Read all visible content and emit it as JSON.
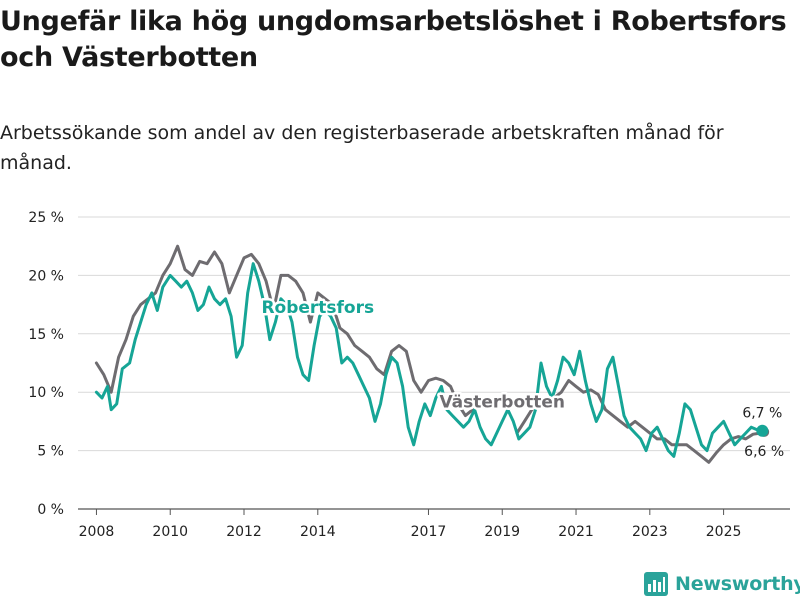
{
  "title": "Ungefär lika hög ungdomsarbetslöshet i Robertsfors och Västerbotten",
  "subtitle": "Arbetssökande som andel av den registerbaserade arbetskraften månad för månad.",
  "brand": {
    "name": "Newsworthy",
    "icon": "chart-logo-icon"
  },
  "colors": {
    "robertsfors": "#16a596",
    "vasterbotten": "#6e6c70",
    "grid": "#d9d9d9"
  },
  "chart_data": {
    "type": "line",
    "title": "Ungefär lika hög ungdomsarbetslöshet i Robertsfors och Västerbotten",
    "xlabel": "",
    "ylabel": "",
    "xlim": [
      2007.5,
      2026.8
    ],
    "ylim": [
      0,
      25
    ],
    "y_ticks": [
      0,
      5,
      10,
      15,
      20,
      25
    ],
    "y_tick_labels": [
      "0 %",
      "5 %",
      "10 %",
      "15 %",
      "20 %",
      "25 %"
    ],
    "x_ticks": [
      2008,
      2010,
      2012,
      2014,
      2017,
      2019,
      2021,
      2023,
      2025
    ],
    "x_tick_labels": [
      "2008",
      "2010",
      "2012",
      "2014",
      "2017",
      "2019",
      "2021",
      "2023",
      "2025"
    ],
    "grid": true,
    "series": [
      {
        "name": "Västerbotten",
        "end_label": "6,6 %",
        "points": [
          [
            2008.0,
            12.5
          ],
          [
            2008.2,
            11.5
          ],
          [
            2008.4,
            10.0
          ],
          [
            2008.6,
            13.0
          ],
          [
            2008.8,
            14.5
          ],
          [
            2009.0,
            16.5
          ],
          [
            2009.2,
            17.5
          ],
          [
            2009.4,
            18.0
          ],
          [
            2009.6,
            18.5
          ],
          [
            2009.8,
            20.0
          ],
          [
            2010.0,
            21.0
          ],
          [
            2010.2,
            22.5
          ],
          [
            2010.4,
            20.5
          ],
          [
            2010.6,
            20.0
          ],
          [
            2010.8,
            21.2
          ],
          [
            2011.0,
            21.0
          ],
          [
            2011.2,
            22.0
          ],
          [
            2011.4,
            21.0
          ],
          [
            2011.6,
            18.5
          ],
          [
            2011.8,
            20.0
          ],
          [
            2012.0,
            21.5
          ],
          [
            2012.2,
            21.8
          ],
          [
            2012.4,
            21.0
          ],
          [
            2012.6,
            19.5
          ],
          [
            2012.8,
            17.0
          ],
          [
            2013.0,
            20.0
          ],
          [
            2013.2,
            20.0
          ],
          [
            2013.4,
            19.5
          ],
          [
            2013.6,
            18.5
          ],
          [
            2013.8,
            16.0
          ],
          [
            2014.0,
            18.5
          ],
          [
            2014.2,
            18.0
          ],
          [
            2014.4,
            17.5
          ],
          [
            2014.6,
            15.5
          ],
          [
            2014.8,
            15.0
          ],
          [
            2015.0,
            14.0
          ],
          [
            2015.2,
            13.5
          ],
          [
            2015.4,
            13.0
          ],
          [
            2015.6,
            12.0
          ],
          [
            2015.8,
            11.5
          ],
          [
            2016.0,
            13.5
          ],
          [
            2016.2,
            14.0
          ],
          [
            2016.4,
            13.5
          ],
          [
            2016.6,
            11.0
          ],
          [
            2016.8,
            10.0
          ],
          [
            2017.0,
            11.0
          ],
          [
            2017.2,
            11.2
          ],
          [
            2017.4,
            11.0
          ],
          [
            2017.6,
            10.5
          ],
          [
            2017.8,
            9.0
          ],
          [
            2018.0,
            8.0
          ],
          [
            2018.2,
            8.5
          ],
          [
            2018.4,
            9.5
          ],
          [
            2018.6,
            9.5
          ]
        ],
        "points_tail": [
          [
            2019.4,
            6.5
          ],
          [
            2019.6,
            7.5
          ],
          [
            2019.8,
            8.5
          ],
          [
            2020.0,
            9.0
          ],
          [
            2020.2,
            9.5
          ],
          [
            2020.4,
            9.5
          ],
          [
            2020.6,
            10.0
          ],
          [
            2020.8,
            11.0
          ],
          [
            2021.0,
            10.5
          ],
          [
            2021.2,
            10.0
          ],
          [
            2021.4,
            10.2
          ],
          [
            2021.6,
            9.8
          ],
          [
            2021.8,
            8.5
          ],
          [
            2022.0,
            8.0
          ],
          [
            2022.2,
            7.5
          ],
          [
            2022.4,
            7.0
          ],
          [
            2022.6,
            7.5
          ],
          [
            2022.8,
            7.0
          ],
          [
            2023.0,
            6.5
          ],
          [
            2023.2,
            6.0
          ],
          [
            2023.4,
            6.0
          ],
          [
            2023.6,
            5.5
          ],
          [
            2023.8,
            5.5
          ],
          [
            2024.0,
            5.5
          ],
          [
            2024.2,
            5.0
          ],
          [
            2024.4,
            4.5
          ],
          [
            2024.6,
            4.0
          ],
          [
            2024.8,
            4.8
          ],
          [
            2025.0,
            5.5
          ],
          [
            2025.2,
            6.0
          ],
          [
            2025.4,
            6.2
          ],
          [
            2025.6,
            6.0
          ],
          [
            2025.8,
            6.4
          ],
          [
            2026.0,
            6.5
          ],
          [
            2026.1,
            6.6
          ]
        ]
      },
      {
        "name": "Robertsfors",
        "end_label": "6,7 %",
        "points": [
          [
            2008.0,
            10.0
          ],
          [
            2008.15,
            9.5
          ],
          [
            2008.3,
            10.5
          ],
          [
            2008.4,
            8.5
          ],
          [
            2008.55,
            9.0
          ],
          [
            2008.7,
            12.0
          ],
          [
            2008.9,
            12.5
          ],
          [
            2009.05,
            14.5
          ],
          [
            2009.2,
            16.0
          ],
          [
            2009.35,
            17.5
          ],
          [
            2009.5,
            18.5
          ],
          [
            2009.65,
            17.0
          ],
          [
            2009.8,
            19.0
          ],
          [
            2010.0,
            20.0
          ],
          [
            2010.15,
            19.5
          ],
          [
            2010.3,
            19.0
          ],
          [
            2010.45,
            19.5
          ],
          [
            2010.6,
            18.5
          ],
          [
            2010.75,
            17.0
          ],
          [
            2010.9,
            17.5
          ],
          [
            2011.05,
            19.0
          ],
          [
            2011.2,
            18.0
          ],
          [
            2011.35,
            17.5
          ],
          [
            2011.5,
            18.0
          ],
          [
            2011.65,
            16.5
          ],
          [
            2011.8,
            13.0
          ],
          [
            2011.95,
            14.0
          ],
          [
            2012.1,
            18.5
          ],
          [
            2012.25,
            21.0
          ],
          [
            2012.4,
            19.5
          ],
          [
            2012.55,
            17.5
          ],
          [
            2012.7,
            14.5
          ],
          [
            2012.85,
            16.0
          ],
          [
            2013.0,
            18.0
          ],
          [
            2013.15,
            17.5
          ],
          [
            2013.3,
            16.0
          ],
          [
            2013.45,
            13.0
          ],
          [
            2013.6,
            11.5
          ],
          [
            2013.75,
            11.0
          ],
          [
            2013.9,
            14.0
          ],
          [
            2014.05,
            16.5
          ],
          [
            2014.2,
            17.0
          ],
          [
            2014.35,
            16.5
          ],
          [
            2014.5,
            15.5
          ],
          [
            2014.65,
            12.5
          ],
          [
            2014.8,
            13.0
          ],
          [
            2014.95,
            12.5
          ],
          [
            2015.1,
            11.5
          ],
          [
            2015.25,
            10.5
          ],
          [
            2015.4,
            9.5
          ],
          [
            2015.55,
            7.5
          ],
          [
            2015.7,
            9.0
          ],
          [
            2015.85,
            11.5
          ],
          [
            2016.0,
            13.0
          ],
          [
            2016.15,
            12.5
          ],
          [
            2016.3,
            10.5
          ],
          [
            2016.45,
            7.0
          ],
          [
            2016.6,
            5.5
          ],
          [
            2016.75,
            7.5
          ],
          [
            2016.9,
            9.0
          ],
          [
            2017.05,
            8.0
          ],
          [
            2017.2,
            9.5
          ],
          [
            2017.35,
            10.5
          ],
          [
            2017.5,
            8.5
          ],
          [
            2017.65,
            8.0
          ],
          [
            2017.8,
            7.5
          ],
          [
            2017.95,
            7.0
          ],
          [
            2018.1,
            7.5
          ],
          [
            2018.25,
            8.5
          ],
          [
            2018.4,
            7.0
          ],
          [
            2018.55,
            6.0
          ],
          [
            2018.7,
            5.5
          ],
          [
            2018.85,
            6.5
          ],
          [
            2019.0,
            7.5
          ],
          [
            2019.15,
            8.5
          ],
          [
            2019.3,
            7.5
          ],
          [
            2019.45,
            6.0
          ],
          [
            2019.6,
            6.5
          ],
          [
            2019.75,
            7.0
          ],
          [
            2019.9,
            8.5
          ],
          [
            2020.05,
            12.5
          ],
          [
            2020.2,
            10.5
          ],
          [
            2020.35,
            9.5
          ],
          [
            2020.5,
            11.0
          ],
          [
            2020.65,
            13.0
          ],
          [
            2020.8,
            12.5
          ],
          [
            2020.95,
            11.5
          ],
          [
            2021.1,
            13.5
          ],
          [
            2021.25,
            11.0
          ],
          [
            2021.4,
            9.0
          ],
          [
            2021.55,
            7.5
          ],
          [
            2021.7,
            8.5
          ],
          [
            2021.85,
            12.0
          ],
          [
            2022.0,
            13.0
          ],
          [
            2022.15,
            10.5
          ],
          [
            2022.3,
            8.0
          ],
          [
            2022.45,
            7.0
          ],
          [
            2022.6,
            6.5
          ],
          [
            2022.75,
            6.0
          ],
          [
            2022.9,
            5.0
          ],
          [
            2023.05,
            6.5
          ],
          [
            2023.2,
            7.0
          ],
          [
            2023.35,
            6.0
          ],
          [
            2023.5,
            5.0
          ],
          [
            2023.65,
            4.5
          ],
          [
            2023.8,
            6.5
          ],
          [
            2023.95,
            9.0
          ],
          [
            2024.1,
            8.5
          ],
          [
            2024.25,
            7.0
          ],
          [
            2024.4,
            5.5
          ],
          [
            2024.55,
            5.0
          ],
          [
            2024.7,
            6.5
          ],
          [
            2024.85,
            7.0
          ],
          [
            2025.0,
            7.5
          ],
          [
            2025.15,
            6.5
          ],
          [
            2025.3,
            5.5
          ],
          [
            2025.45,
            6.0
          ],
          [
            2025.6,
            6.5
          ],
          [
            2025.75,
            7.0
          ],
          [
            2025.9,
            6.8
          ],
          [
            2026.05,
            6.7
          ]
        ]
      }
    ],
    "annotations": [
      {
        "text": "Robertsfors",
        "series": "Robertsfors",
        "x": 2014.0,
        "y": 16.8
      },
      {
        "text": "Västerbotten",
        "series": "Västerbotten",
        "x": 2019.0,
        "y": 8.7
      }
    ]
  }
}
